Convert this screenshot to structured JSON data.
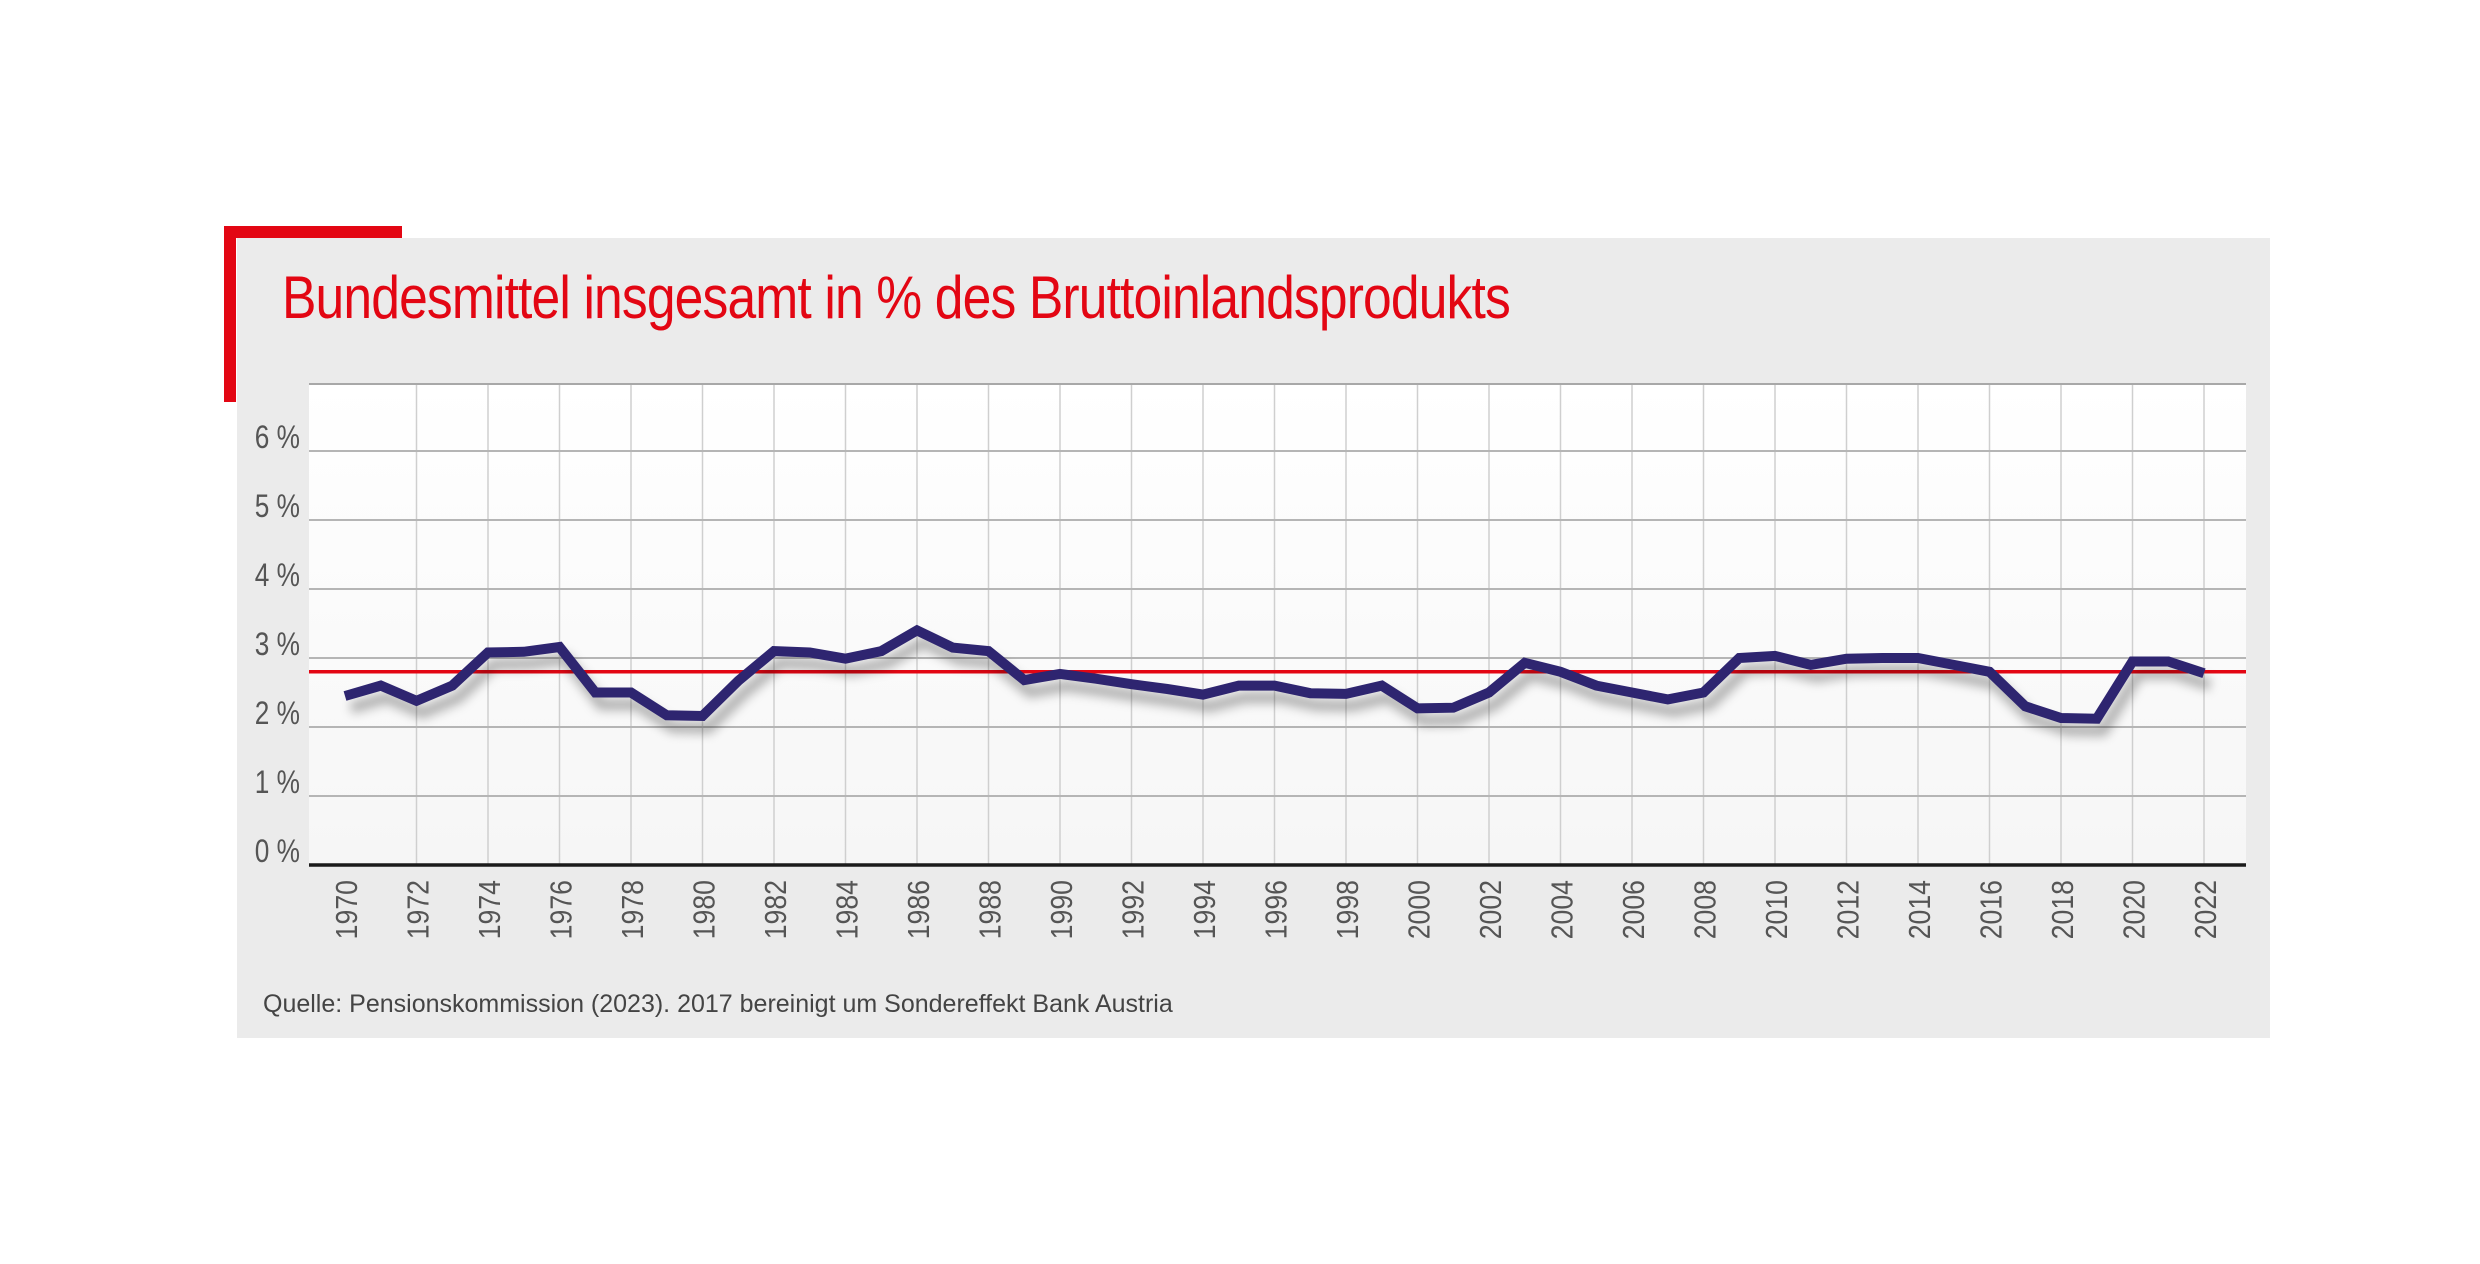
{
  "title": "Bundesmittel insgesamt in % des Bruttoinlandsprodukts",
  "source": "Quelle: Pensionskommission (2023). 2017 bereinigt um Sondereffekt Bank Austria",
  "colors": {
    "accent": "#e30613",
    "line": "#2e2570",
    "reference_line": "#e30613",
    "card_background": "#ebebeb"
  },
  "chart_data": {
    "type": "line",
    "title": "Bundesmittel insgesamt in % des Bruttoinlandsprodukts",
    "xlabel": "",
    "ylabel": "",
    "ylim": [
      0,
      7
    ],
    "xlim": [
      1970,
      2022
    ],
    "y_ticks": [
      0,
      1,
      2,
      3,
      4,
      5,
      6
    ],
    "y_tick_labels": [
      "0 %",
      "1 %",
      "2 %",
      "3 %",
      "4 %",
      "5 %",
      "6 %"
    ],
    "x_tick_labels": [
      "1970",
      "1972",
      "1974",
      "1976",
      "1978",
      "1980",
      "1982",
      "1984",
      "1986",
      "1988",
      "1990",
      "1992",
      "1994",
      "1996",
      "1998",
      "2000",
      "2002",
      "2004",
      "2006",
      "2008",
      "2010",
      "2012",
      "2014",
      "2016",
      "2018",
      "2020",
      "2022"
    ],
    "grid": true,
    "reference_line": {
      "y": 2.8
    },
    "series": [
      {
        "x": [
          1970,
          1971,
          1972,
          1973,
          1974,
          1975,
          1976,
          1977,
          1978,
          1979,
          1980,
          1981,
          1982,
          1983,
          1984,
          1985,
          1986,
          1987,
          1988,
          1989,
          1990,
          1991,
          1992,
          1993,
          1994,
          1995,
          1996,
          1997,
          1998,
          1999,
          2000,
          2001,
          2002,
          2003,
          2004,
          2005,
          2006,
          2007,
          2008,
          2009,
          2010,
          2011,
          2012,
          2013,
          2014,
          2015,
          2016,
          2017,
          2018,
          2019,
          2020,
          2021,
          2022
        ],
        "values": [
          2.45,
          2.6,
          2.38,
          2.6,
          3.08,
          3.09,
          3.16,
          2.5,
          2.5,
          2.17,
          2.16,
          2.67,
          3.1,
          3.08,
          2.99,
          3.1,
          3.4,
          3.15,
          3.1,
          2.68,
          2.77,
          2.7,
          2.62,
          2.55,
          2.47,
          2.6,
          2.6,
          2.49,
          2.48,
          2.6,
          2.27,
          2.28,
          2.5,
          2.93,
          2.8,
          2.6,
          2.5,
          2.4,
          2.5,
          3.0,
          3.03,
          2.9,
          2.99,
          3.0,
          3.0,
          2.9,
          2.8,
          2.3,
          2.13,
          2.12,
          2.95,
          2.95,
          2.78
        ]
      }
    ]
  }
}
